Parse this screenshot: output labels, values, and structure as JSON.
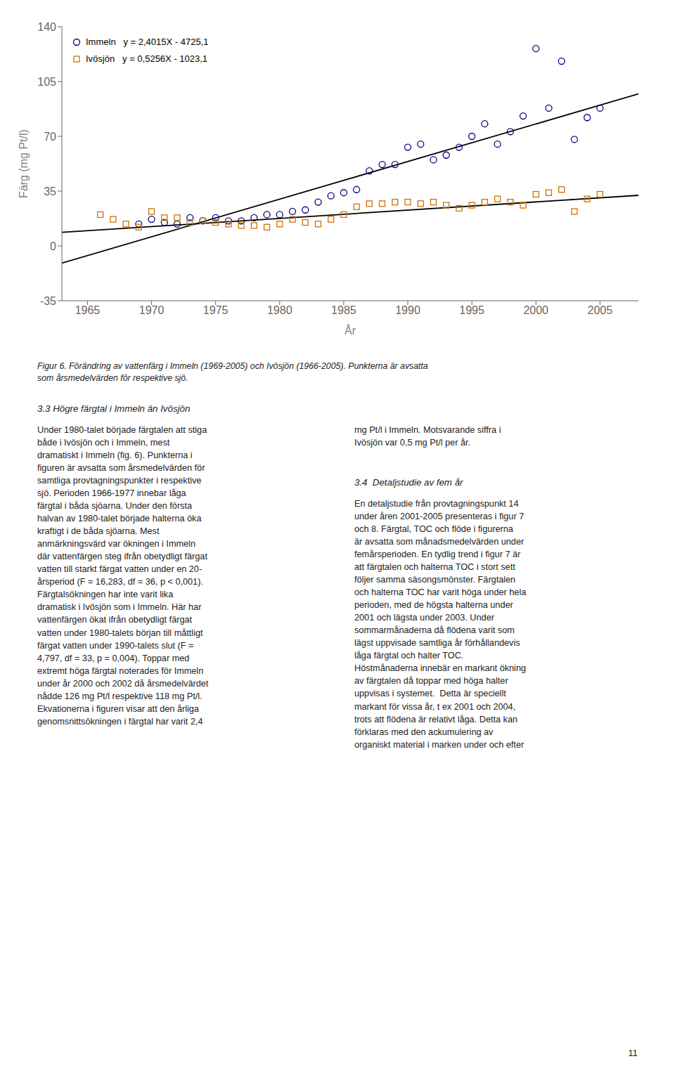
{
  "chart_data": {
    "type": "scatter",
    "xlabel": "År",
    "ylabel": "Färg (mg Pt/l)",
    "xlim": [
      1963,
      2008
    ],
    "xticks": [
      1965,
      1970,
      1975,
      1980,
      1985,
      1990,
      1995,
      2000,
      2005
    ],
    "ylim": [
      -35,
      140
    ],
    "yticks": [
      -35,
      0,
      35,
      70,
      105,
      140
    ],
    "grid": false,
    "legend": "upper left",
    "series": [
      {
        "name": "Immeln   y = 2,4015X - 4725,1",
        "type": "scatter",
        "marker": "circle",
        "color": "#000080",
        "x": [
          1969,
          1970,
          1971,
          1972,
          1973,
          1974,
          1975,
          1976,
          1977,
          1978,
          1979,
          1980,
          1981,
          1982,
          1983,
          1984,
          1985,
          1986,
          1987,
          1988,
          1989,
          1990,
          1991,
          1992,
          1993,
          1994,
          1995,
          1996,
          1997,
          1998,
          1999,
          2000,
          2001,
          2002,
          2003,
          2004,
          2005
        ],
        "values": [
          14,
          17,
          15,
          14,
          18,
          16,
          18,
          16,
          16,
          18,
          20,
          20,
          22,
          23,
          28,
          32,
          34,
          36,
          48,
          52,
          52,
          63,
          65,
          55,
          58,
          63,
          70,
          78,
          65,
          73,
          83,
          126,
          88,
          118,
          68,
          82,
          88
        ]
      },
      {
        "name": "Ivösjön   y = 0,5256X - 1023,1",
        "type": "scatter",
        "marker": "square",
        "color": "#D07000",
        "x": [
          1966,
          1967,
          1968,
          1969,
          1970,
          1971,
          1972,
          1973,
          1974,
          1975,
          1976,
          1977,
          1978,
          1979,
          1980,
          1981,
          1982,
          1983,
          1984,
          1985,
          1986,
          1987,
          1988,
          1989,
          1990,
          1991,
          1992,
          1993,
          1994,
          1995,
          1996,
          1997,
          1998,
          1999,
          2000,
          2001,
          2002,
          2003,
          2004,
          2005
        ],
        "values": [
          20,
          17,
          14,
          12,
          22,
          18,
          18,
          15,
          16,
          15,
          14,
          13,
          13,
          12,
          14,
          17,
          15,
          14,
          17,
          20,
          25,
          27,
          27,
          28,
          28,
          27,
          28,
          26,
          24,
          26,
          28,
          30,
          28,
          26,
          33,
          34,
          36,
          22,
          30,
          33
        ]
      },
      {
        "type": "line",
        "color": "#000000",
        "x": [
          1963,
          2008
        ],
        "values": [
          -10.9555,
          97.112
        ]
      },
      {
        "type": "line",
        "color": "#000000",
        "x": [
          1963,
          2008
        ],
        "values": [
          8.6528,
          32.3048
        ]
      }
    ],
    "annotations": [
      "Figur 6. Förändring av vattenfärg i Immeln (1969-2005) och Ivösjön (1966-2005). Punkterna är avsatta\nsom årsmedelvärden för respektive sjö.",
      "3.3 Högre färgtal i Immeln än Ivösjön",
      "Under 1980-talet började färgtalen att stiga\nbåde i Ivösjön och i Immeln, mest\ndramatiskt i Immeln (fig. 6). Punkterna i\nfiguren är avsatta som årsmedelvärden för\nsamtliga provtagningspunkter i respektive\nsjö. Perioden 1966-1977 innebar låga\nfärgtal i båda sjöarna. Under den första\nhalvan av 1980-talet började halterna öka\nkraftigt i de båda sjöarna. Mest\nanmärkningsvärd var ökningen i Immeln\ndär vattenfärgen steg ifrån obetydligt färgat\nvatten till starkt färgat vatten under en 20-\nårsperiod (F = 16,283, df = 36, p < 0,001).\nFärgtalsökningen har inte varit lika\ndramatisk i Ivösjön som i Immeln. Här har\nvattenfärgen ökat ifrån obetydligt färgat\nvatten under 1980-talets början till måttligt\nfärgat vatten under 1990-talets slut (F =\n4,797, df = 33, p = 0,004). Toppar med\nextremt höga färgtal noterades för Immeln\nunder år 2000 och 2002 då årsmedelvärdet\nnådde 126 mg Pt/l respektive 118 mg Pt/l.\nEkvationerna i figuren visar att den årliga\ngenomsnittsökningen i färgtal har varit 2,4",
      "mg Pt/l i Immeln. Motsvarande siffra i\nIvösjön var 0,5 mg Pt/l per år.",
      "3.4  Detaljstudie av fem år",
      "En detaljstudie från provtagningspunkt 14\nunder åren 2001-2005 presenteras i figur 7\noch 8. Färgtal, TOC och flöde i figurerna\när avsatta som månadsmedelvärden under\nfemårsperioden. En tydlig trend i figur 7 är\natt färgtalen och halterna TOC i stort sett\nföljer samma säsongsmönster. Färgtalen\noch halterna TOC har varit höga under hela\nperioden, med de högsta halterna under\n2001 och lägsta under 2003. Under\nsommarmånaderna då flödena varit som\nlägst uppvisade samtliga år förhållandevis\nlåga färgtal och halter TOC.\nHöstmånaderna innebär en markant ökning\nav färgtalen då toppar med höga halter\nuppvisas i systemet.  Detta är speciellt\nmarkant för vissa år, t ex 2001 och 2004,\ntrots att flödena är relativt låga. Detta kan\nförklaras med den ackumulering av\norganiskt material i marken under och efter",
      "11"
    ]
  }
}
